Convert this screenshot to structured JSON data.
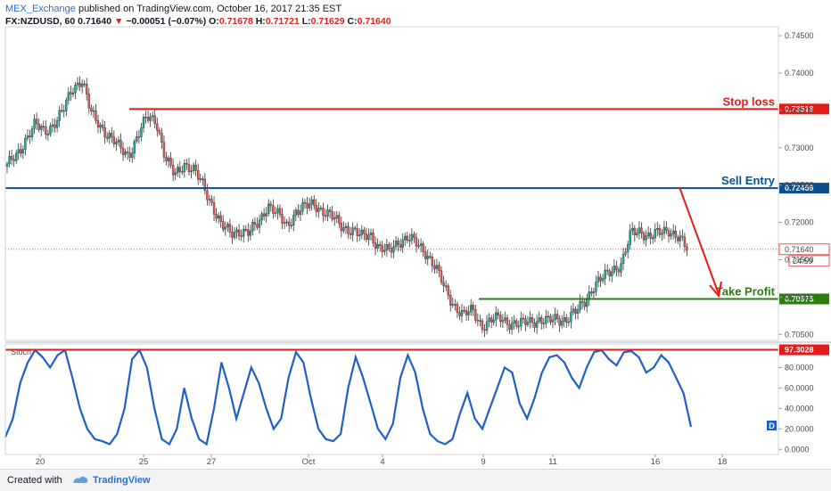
{
  "header": {
    "author": "MEX_Exchange",
    "published": " published on TradingView.com, October 16, 2017 21:35 EST",
    "symbol": "FX:NZDUSD, 60",
    "last": "0.71640",
    "change": "−0.00051 (−0.07%)",
    "o_label": "O:",
    "o": "0.71678",
    "h_label": "H:",
    "h": "0.71721",
    "l_label": "L:",
    "l": "0.71629",
    "c_label": "C:",
    "c": "0.71640"
  },
  "footer": {
    "created": "Created with",
    "brand": "TradingView"
  },
  "colors": {
    "up": "#26a69a",
    "down": "#ef5350",
    "stop": "#e31b1b",
    "entry": "#0b4f8a",
    "profit": "#2e7d12",
    "stoch": "#1f5fc8"
  },
  "chart_data": [
    {
      "type": "candlestick",
      "ylim": [
        0.7042,
        0.7462
      ],
      "yticks": [
        "0.74500",
        "0.74000",
        "0.73500",
        "0.73000",
        "0.72500",
        "0.72000",
        "0.71500",
        "0.71000",
        "0.70500"
      ],
      "xticks": [
        "20",
        "25",
        "27",
        "Oct",
        "4",
        "9",
        "11",
        "16",
        "18"
      ],
      "levels": [
        {
          "name": "Stop loss",
          "value": 0.73518,
          "tag": "0.73518"
        },
        {
          "name": "Sell Entry",
          "value": 0.72459,
          "tag": "0.72459"
        },
        {
          "name": "Take Profit",
          "value": 0.70975,
          "tag": "0.70975"
        }
      ],
      "last_price": {
        "value": 0.7164,
        "tag": "0.71640",
        "countdown": "24:59"
      },
      "price_path": [
        [
          0,
          0.7275
        ],
        [
          1,
          0.729
        ],
        [
          2,
          0.7312
        ],
        [
          3,
          0.733
        ],
        [
          4,
          0.7322
        ],
        [
          5,
          0.7332
        ],
        [
          6,
          0.7348
        ],
        [
          7,
          0.738
        ],
        [
          8,
          0.7392
        ],
        [
          8.5,
          0.737
        ],
        [
          9,
          0.7345
        ],
        [
          10,
          0.733
        ],
        [
          11,
          0.7315
        ],
        [
          12,
          0.73
        ],
        [
          13,
          0.729
        ],
        [
          14,
          0.7315
        ],
        [
          15,
          0.734
        ],
        [
          16,
          0.7338
        ],
        [
          17,
          0.7285
        ],
        [
          18,
          0.7262
        ],
        [
          19,
          0.728
        ],
        [
          20,
          0.727
        ],
        [
          21,
          0.725
        ],
        [
          22,
          0.7225
        ],
        [
          23,
          0.7195
        ],
        [
          24,
          0.7185
        ],
        [
          25,
          0.719
        ],
        [
          26,
          0.7185
        ],
        [
          27,
          0.72
        ],
        [
          28,
          0.7225
        ],
        [
          29,
          0.721
        ],
        [
          30,
          0.7195
        ],
        [
          31,
          0.7215
        ],
        [
          32,
          0.722
        ],
        [
          33,
          0.7225
        ],
        [
          34,
          0.7215
        ],
        [
          35,
          0.7205
        ],
        [
          36,
          0.7195
        ],
        [
          37,
          0.719
        ],
        [
          38,
          0.718
        ],
        [
          39,
          0.7185
        ],
        [
          40,
          0.7165
        ],
        [
          41,
          0.716
        ],
        [
          42,
          0.7175
        ],
        [
          43,
          0.718
        ],
        [
          44,
          0.717
        ],
        [
          45,
          0.716
        ],
        [
          46,
          0.714
        ],
        [
          47,
          0.711
        ],
        [
          48,
          0.709
        ],
        [
          49,
          0.7075
        ],
        [
          50,
          0.7082
        ],
        [
          51,
          0.7062
        ],
        [
          52,
          0.7068
        ],
        [
          53,
          0.7072
        ],
        [
          54,
          0.7066
        ],
        [
          55,
          0.7062
        ],
        [
          56,
          0.7068
        ],
        [
          57,
          0.707
        ],
        [
          58,
          0.7066
        ],
        [
          59,
          0.7072
        ],
        [
          60,
          0.707
        ],
        [
          61,
          0.7078
        ],
        [
          62,
          0.7095
        ],
        [
          63,
          0.7115
        ],
        [
          64,
          0.7125
        ],
        [
          65,
          0.7138
        ],
        [
          66,
          0.7145
        ],
        [
          67,
          0.7185
        ],
        [
          68,
          0.719
        ],
        [
          69,
          0.718
        ],
        [
          70,
          0.7185
        ],
        [
          71,
          0.7192
        ],
        [
          72,
          0.718
        ],
        [
          73,
          0.7164
        ]
      ]
    },
    {
      "type": "line",
      "name": "Stoch",
      "ylim": [
        -5,
        103
      ],
      "yticks": [
        "80.0000",
        "60.0000",
        "40.0000",
        "20.0000",
        "0.0000"
      ],
      "levels": [
        {
          "value": 97.3028,
          "tag": "97.3028"
        }
      ],
      "marker": "D",
      "values": [
        12,
        30,
        65,
        85,
        97,
        90,
        80,
        92,
        97,
        70,
        40,
        20,
        10,
        8,
        5,
        15,
        40,
        88,
        97,
        80,
        40,
        10,
        5,
        20,
        60,
        30,
        10,
        5,
        40,
        85,
        60,
        30,
        55,
        80,
        65,
        40,
        20,
        30,
        70,
        95,
        85,
        50,
        20,
        10,
        8,
        15,
        60,
        90,
        70,
        45,
        20,
        10,
        25,
        70,
        92,
        75,
        40,
        15,
        8,
        5,
        10,
        35,
        55,
        30,
        20,
        40,
        60,
        80,
        75,
        45,
        30,
        50,
        75,
        90,
        92,
        85,
        70,
        60,
        80,
        95,
        97,
        88,
        82,
        95,
        96,
        90,
        75,
        80,
        92,
        85,
        70,
        55,
        22
      ]
    }
  ]
}
